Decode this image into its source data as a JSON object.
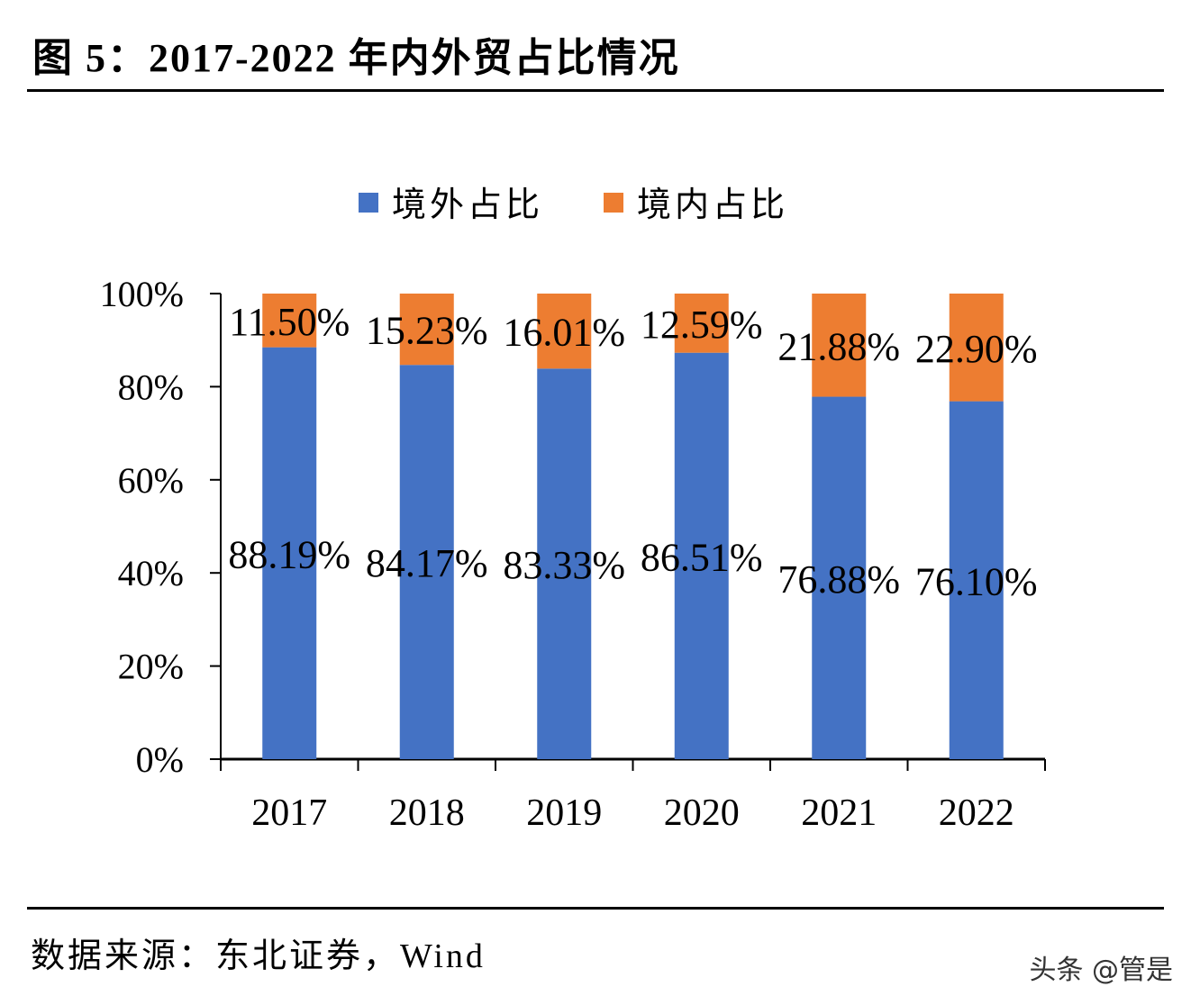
{
  "title": "图 5：2017-2022 年内外贸占比情况",
  "source": "数据来源：东北证券，Wind",
  "watermark": "头条 @管是",
  "chart_data": {
    "type": "bar",
    "stacked": true,
    "categories": [
      "2017",
      "2018",
      "2019",
      "2020",
      "2021",
      "2022"
    ],
    "series": [
      {
        "name": "境外占比",
        "color": "#4472C4",
        "values": [
          88.19,
          84.17,
          83.33,
          86.51,
          76.88,
          76.1
        ],
        "labels": [
          "88.19%",
          "84.17%",
          "83.33%",
          "86.51%",
          "76.88%",
          "76.10%"
        ]
      },
      {
        "name": "境内占比",
        "color": "#ED7D31",
        "values": [
          11.5,
          15.23,
          16.01,
          12.59,
          21.88,
          22.9
        ],
        "labels": [
          "11.50%",
          "15.23%",
          "16.01%",
          "12.59%",
          "21.88%",
          "22.90%"
        ]
      }
    ],
    "yticks": [
      "0%",
      "20%",
      "40%",
      "60%",
      "80%",
      "100%"
    ],
    "ylim": [
      0,
      100
    ],
    "legend": "top",
    "grid": false
  }
}
